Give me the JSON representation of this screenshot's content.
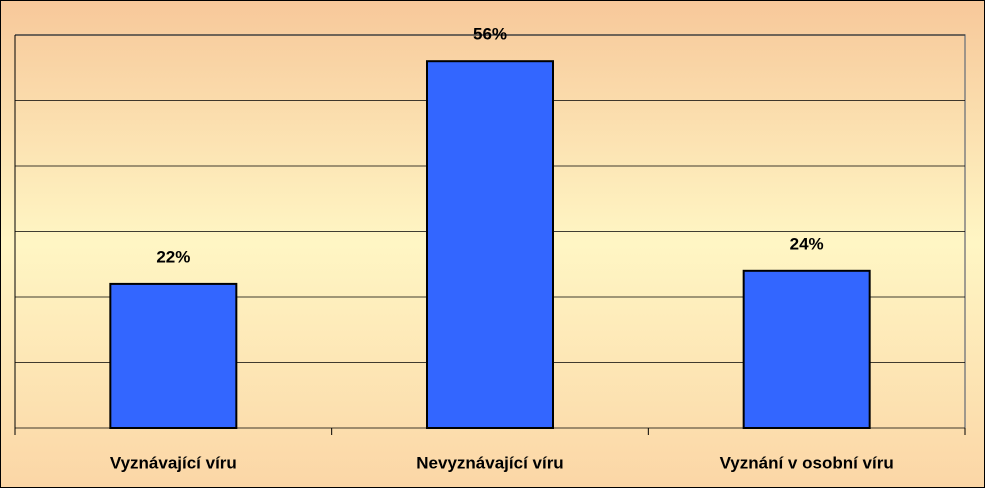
{
  "chart_data": {
    "type": "bar",
    "categories": [
      "Vyznávající víru",
      "Nevyznávající víru",
      "Vyznání v osobní víru"
    ],
    "values": [
      22,
      56,
      24
    ],
    "value_labels": [
      "22%",
      "56%",
      "24%"
    ],
    "color": "#3366ff",
    "ylim": [
      0,
      60
    ],
    "yticks": [
      0,
      10,
      20,
      30,
      40,
      50,
      60
    ],
    "grid": true
  }
}
